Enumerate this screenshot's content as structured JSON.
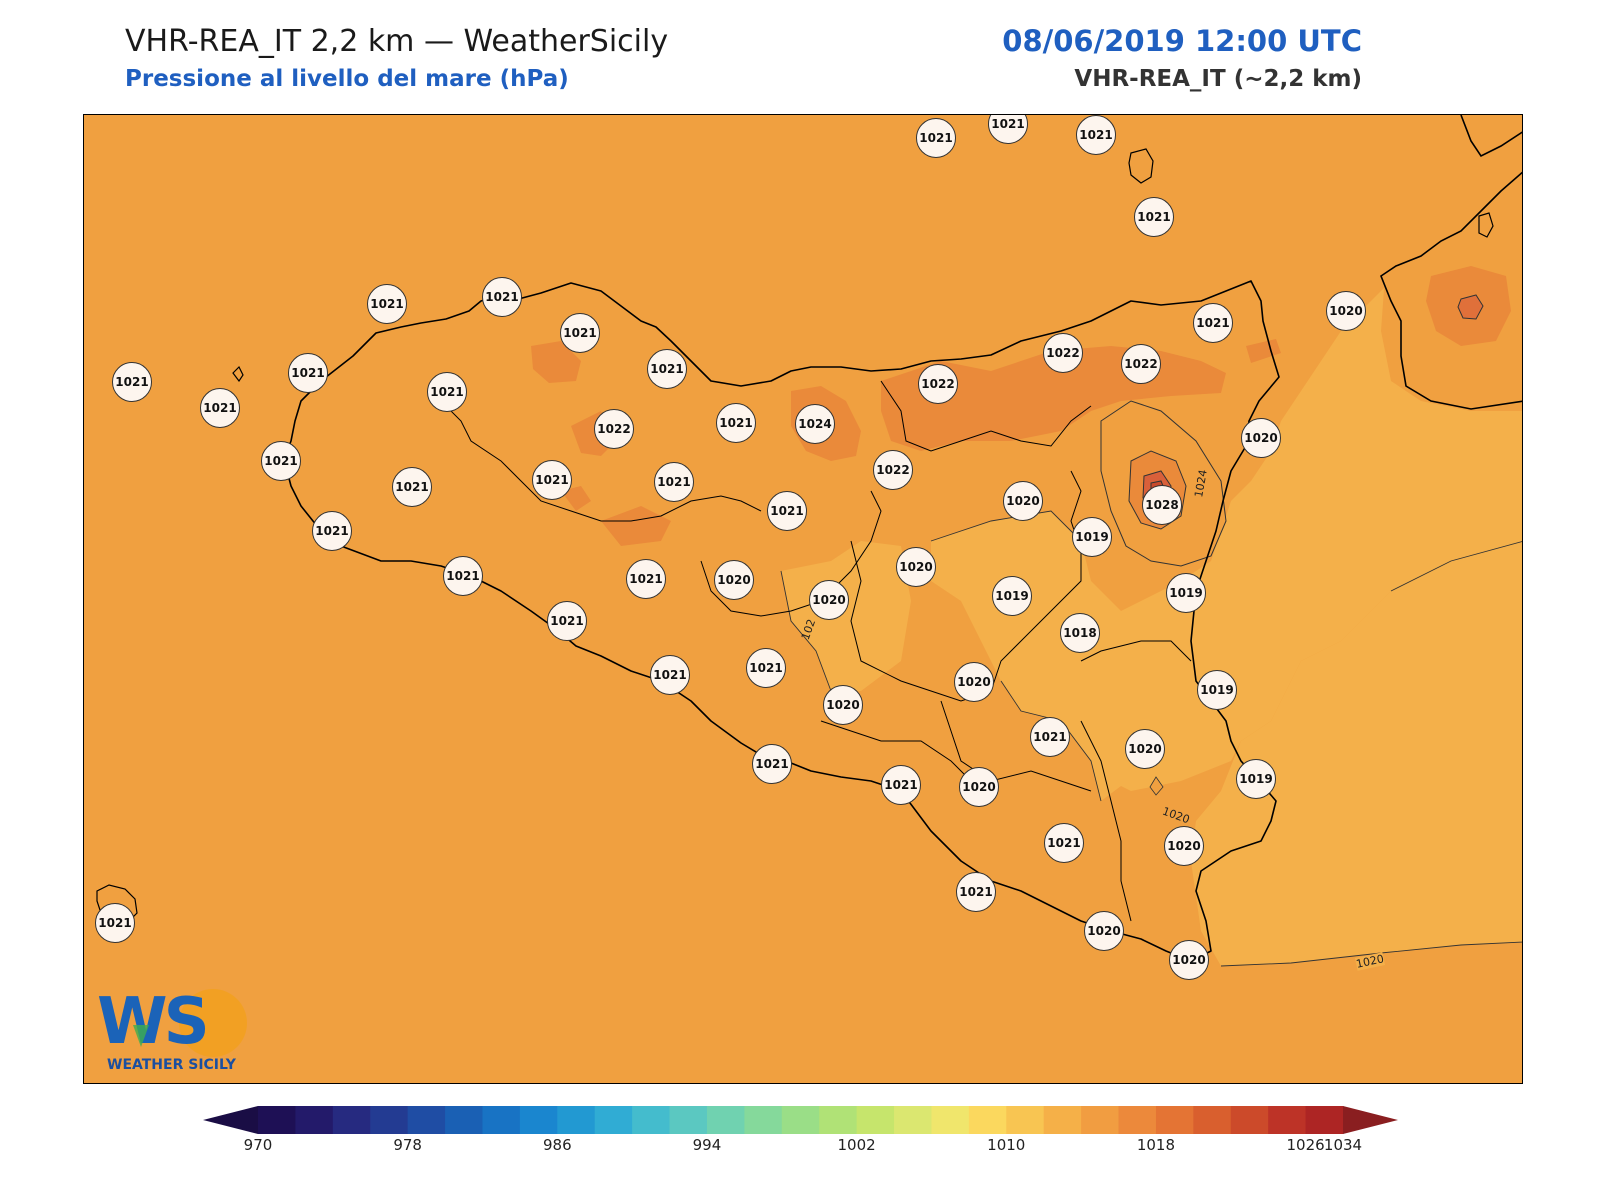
{
  "header": {
    "title": "VHR-REA_IT 2,2 km — WeatherSicily",
    "subtitle": "Pressione al livello del mare (hPa)",
    "datetime": "08/06/2019 12:00 UTC",
    "model": "VHR-REA_IT (~2,2 km)"
  },
  "logo": {
    "letters": "WS",
    "text": "WEATHER SICILY"
  },
  "contour_labels": [
    "1024",
    "1020",
    "1020",
    "1020",
    "102"
  ],
  "stations": [
    {
      "value": "1021",
      "pos": [
        935,
        137
      ]
    },
    {
      "value": "1021",
      "pos": [
        1007,
        123
      ]
    },
    {
      "value": "1021",
      "pos": [
        1095,
        134
      ]
    },
    {
      "value": "1021",
      "pos": [
        1153,
        216
      ]
    },
    {
      "value": "1021",
      "pos": [
        386,
        303
      ]
    },
    {
      "value": "1021",
      "pos": [
        501,
        296
      ]
    },
    {
      "value": "1021",
      "pos": [
        579,
        332
      ]
    },
    {
      "value": "1021",
      "pos": [
        131,
        381
      ]
    },
    {
      "value": "1021",
      "pos": [
        307,
        372
      ]
    },
    {
      "value": "1021",
      "pos": [
        446,
        391
      ]
    },
    {
      "value": "1021",
      "pos": [
        666,
        368
      ]
    },
    {
      "value": "1021",
      "pos": [
        219,
        407
      ]
    },
    {
      "value": "1022",
      "pos": [
        613,
        428
      ]
    },
    {
      "value": "1021",
      "pos": [
        735,
        422
      ]
    },
    {
      "value": "1024",
      "pos": [
        814,
        423
      ]
    },
    {
      "value": "1022",
      "pos": [
        937,
        383
      ]
    },
    {
      "value": "1022",
      "pos": [
        1062,
        352
      ]
    },
    {
      "value": "1022",
      "pos": [
        1140,
        363
      ]
    },
    {
      "value": "1021",
      "pos": [
        1212,
        322
      ]
    },
    {
      "value": "1020",
      "pos": [
        1345,
        310
      ]
    },
    {
      "value": "1020",
      "pos": [
        1260,
        437
      ]
    },
    {
      "value": "1021",
      "pos": [
        280,
        460
      ]
    },
    {
      "value": "1021",
      "pos": [
        411,
        486
      ]
    },
    {
      "value": "1021",
      "pos": [
        551,
        479
      ]
    },
    {
      "value": "1021",
      "pos": [
        673,
        481
      ]
    },
    {
      "value": "1022",
      "pos": [
        892,
        469
      ]
    },
    {
      "value": "1021",
      "pos": [
        786,
        510
      ]
    },
    {
      "value": "1020",
      "pos": [
        1022,
        500
      ]
    },
    {
      "value": "1028",
      "pos": [
        1161,
        504
      ]
    },
    {
      "value": "1021",
      "pos": [
        331,
        530
      ]
    },
    {
      "value": "1019",
      "pos": [
        1091,
        536
      ]
    },
    {
      "value": "1021",
      "pos": [
        462,
        575
      ]
    },
    {
      "value": "1021",
      "pos": [
        645,
        578
      ]
    },
    {
      "value": "1020",
      "pos": [
        733,
        579
      ]
    },
    {
      "value": "1020",
      "pos": [
        828,
        599
      ]
    },
    {
      "value": "1020",
      "pos": [
        915,
        566
      ]
    },
    {
      "value": "1019",
      "pos": [
        1011,
        595
      ]
    },
    {
      "value": "1019",
      "pos": [
        1185,
        592
      ]
    },
    {
      "value": "1021",
      "pos": [
        566,
        620
      ]
    },
    {
      "value": "1018",
      "pos": [
        1079,
        632
      ]
    },
    {
      "value": "1021",
      "pos": [
        669,
        674
      ]
    },
    {
      "value": "1021",
      "pos": [
        765,
        667
      ]
    },
    {
      "value": "1020",
      "pos": [
        842,
        704
      ]
    },
    {
      "value": "1020",
      "pos": [
        973,
        681
      ]
    },
    {
      "value": "1019",
      "pos": [
        1216,
        689
      ]
    },
    {
      "value": "1021",
      "pos": [
        1049,
        736
      ]
    },
    {
      "value": "1020",
      "pos": [
        1144,
        748
      ]
    },
    {
      "value": "1021",
      "pos": [
        771,
        763
      ]
    },
    {
      "value": "1021",
      "pos": [
        900,
        784
      ]
    },
    {
      "value": "1020",
      "pos": [
        978,
        786
      ]
    },
    {
      "value": "1019",
      "pos": [
        1255,
        778
      ]
    },
    {
      "value": "1021",
      "pos": [
        1063,
        842
      ]
    },
    {
      "value": "1020",
      "pos": [
        1183,
        845
      ]
    },
    {
      "value": "1021",
      "pos": [
        114,
        922
      ]
    },
    {
      "value": "1021",
      "pos": [
        975,
        891
      ]
    },
    {
      "value": "1020",
      "pos": [
        1103,
        930
      ]
    },
    {
      "value": "1020",
      "pos": [
        1188,
        959
      ]
    }
  ],
  "colorbar": {
    "min": 970,
    "max": 1034,
    "step": 2,
    "tick_labels": [
      "970",
      "978",
      "986",
      "994",
      "1002",
      "1010",
      "1018",
      "1026",
      "1034"
    ],
    "colors": [
      "#1e1055",
      "#231a6a",
      "#262a80",
      "#233b92",
      "#1f4da4",
      "#1a60b4",
      "#1873c4",
      "#1a86cf",
      "#2299d2",
      "#30acd4",
      "#44bccd",
      "#5bc8c1",
      "#70d2b0",
      "#85d99b",
      "#9ade87",
      "#b0e276",
      "#c6e56c",
      "#dbe770",
      "#f0e66c",
      "#fbd85e",
      "#f8c552",
      "#f5b048",
      "#f19d41",
      "#ec893b",
      "#e47434",
      "#d95f2e",
      "#cc4a2a",
      "#bd3327",
      "#ad2524"
    ],
    "under_color": "#1a0d45",
    "over_color": "#8a1e20"
  }
}
